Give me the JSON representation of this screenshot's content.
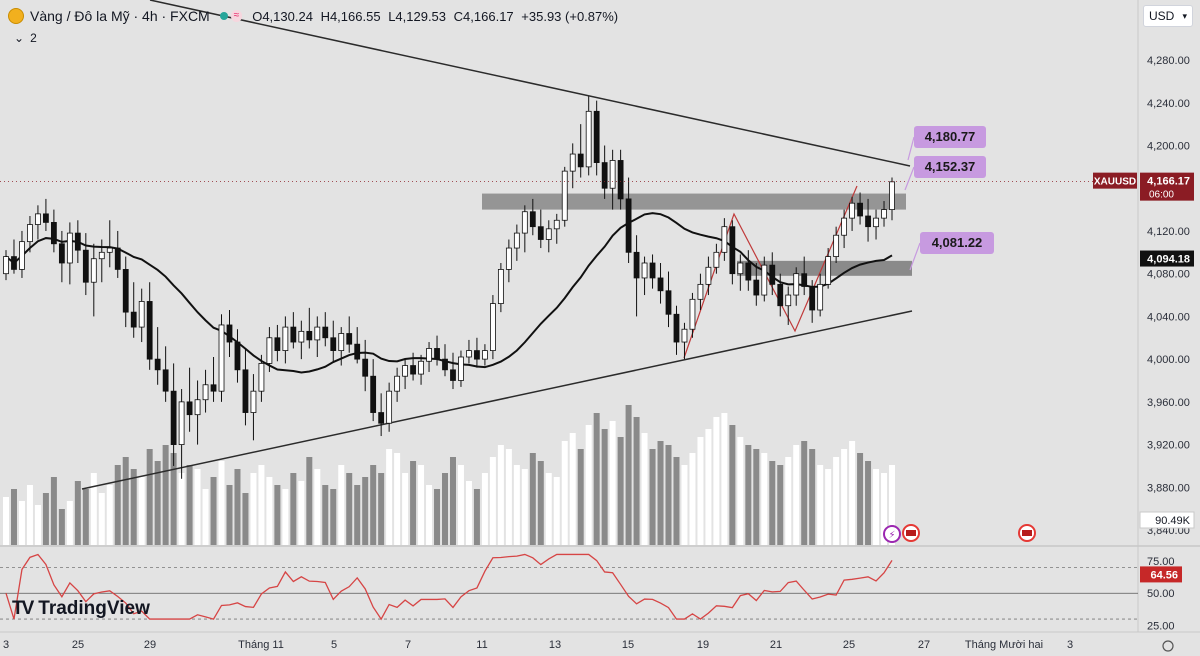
{
  "header": {
    "symbol_title": "Vàng / Đô la Mỹ · 4h · FXCM",
    "badge": "≈",
    "open": "O4,130.24",
    "high": "H4,166.55",
    "low": "L4,129.53",
    "close": "C4,166.17",
    "change": "+35.93 (+0.87%)",
    "collapse_count": "2",
    "currency": "USD"
  },
  "logo": {
    "text": "TradingView",
    "mark": "TV"
  },
  "colors": {
    "accent_purple": "#c79ae0",
    "price_label": "#8b1c24",
    "rsi_line": "#d64545"
  },
  "chart_data": {
    "type": "candlestick",
    "price_axis": {
      "ticks": [
        "4,280.00",
        "4,240.00",
        "4,200.00",
        "4,160.00",
        "4,120.00",
        "4,080.00",
        "4,040.00",
        "4,000.00",
        "3,960.00",
        "3,920.00",
        "3,880.00",
        "3,840.00"
      ],
      "range": [
        3826,
        4310
      ]
    },
    "x_axis_labels": [
      "3",
      "25",
      "29",
      "Tháng 11",
      "5",
      "7",
      "11",
      "13",
      "15",
      "19",
      "21",
      "25",
      "27",
      "Tháng Mười hai",
      "3"
    ],
    "volume_label": "90.49K",
    "symbol_tag": "XAUUSD",
    "last_price": "4,166.17",
    "countdown": "06:00",
    "ma_value": "4,094.18",
    "annotations": [
      "4,180.77",
      "4,152.37",
      "4,081.22"
    ],
    "rsi": {
      "ticks": [
        "75.00",
        "50.00",
        "25.00"
      ],
      "value": "64.56",
      "range": [
        20,
        85
      ],
      "upper": 70,
      "mid": 50,
      "lower": 30
    },
    "candles": [
      [
        4080,
        4102,
        4074,
        4096
      ],
      [
        4096,
        4112,
        4080,
        4084
      ],
      [
        4084,
        4120,
        4076,
        4110
      ],
      [
        4110,
        4134,
        4100,
        4126
      ],
      [
        4126,
        4144,
        4112,
        4136
      ],
      [
        4136,
        4150,
        4120,
        4128
      ],
      [
        4128,
        4140,
        4100,
        4108
      ],
      [
        4108,
        4120,
        4072,
        4090
      ],
      [
        4090,
        4128,
        4070,
        4118
      ],
      [
        4118,
        4130,
        4090,
        4102
      ],
      [
        4102,
        4118,
        4060,
        4072
      ],
      [
        4072,
        4108,
        4040,
        4094
      ],
      [
        4094,
        4112,
        4072,
        4100
      ],
      [
        4100,
        4130,
        4086,
        4104
      ],
      [
        4104,
        4120,
        4076,
        4084
      ],
      [
        4084,
        4096,
        4030,
        4044
      ],
      [
        4044,
        4072,
        4020,
        4030
      ],
      [
        4030,
        4066,
        4016,
        4054
      ],
      [
        4054,
        4072,
        3990,
        4000
      ],
      [
        4000,
        4030,
        3976,
        3990
      ],
      [
        3990,
        4012,
        3960,
        3970
      ],
      [
        3970,
        3996,
        3900,
        3920
      ],
      [
        3920,
        3972,
        3888,
        3960
      ],
      [
        3960,
        3992,
        3932,
        3948
      ],
      [
        3948,
        3980,
        3920,
        3962
      ],
      [
        3962,
        3990,
        3950,
        3976
      ],
      [
        3976,
        4002,
        3960,
        3970
      ],
      [
        3970,
        4042,
        3960,
        4032
      ],
      [
        4032,
        4046,
        4002,
        4016
      ],
      [
        4016,
        4028,
        3978,
        3990
      ],
      [
        3990,
        4010,
        3938,
        3950
      ],
      [
        3950,
        3986,
        3924,
        3970
      ],
      [
        3970,
        4004,
        3960,
        3996
      ],
      [
        3996,
        4030,
        3988,
        4020
      ],
      [
        4020,
        4032,
        3998,
        4008
      ],
      [
        4008,
        4040,
        3996,
        4030
      ],
      [
        4030,
        4044,
        4010,
        4016
      ],
      [
        4016,
        4036,
        4000,
        4026
      ],
      [
        4026,
        4048,
        4010,
        4018
      ],
      [
        4018,
        4040,
        4002,
        4030
      ],
      [
        4030,
        4044,
        4012,
        4020
      ],
      [
        4020,
        4036,
        3998,
        4008
      ],
      [
        4008,
        4030,
        3994,
        4024
      ],
      [
        4024,
        4040,
        4006,
        4014
      ],
      [
        4014,
        4030,
        3996,
        4000
      ],
      [
        4000,
        4018,
        3970,
        3984
      ],
      [
        3984,
        4000,
        3942,
        3950
      ],
      [
        3950,
        3968,
        3928,
        3940
      ],
      [
        3940,
        3978,
        3932,
        3970
      ],
      [
        3970,
        3992,
        3960,
        3984
      ],
      [
        3984,
        4000,
        3972,
        3994
      ],
      [
        3994,
        4006,
        3980,
        3986
      ],
      [
        3986,
        4004,
        3976,
        3998
      ],
      [
        3998,
        4016,
        3988,
        4010
      ],
      [
        4010,
        4022,
        3994,
        4000
      ],
      [
        4000,
        4014,
        3984,
        3990
      ],
      [
        3990,
        4006,
        3972,
        3980
      ],
      [
        3980,
        4008,
        3974,
        4002
      ],
      [
        4002,
        4018,
        3996,
        4008
      ],
      [
        4008,
        4020,
        3992,
        4000
      ],
      [
        4000,
        4014,
        3994,
        4008
      ],
      [
        4008,
        4060,
        4000,
        4052
      ],
      [
        4052,
        4090,
        4044,
        4084
      ],
      [
        4084,
        4112,
        4072,
        4104
      ],
      [
        4104,
        4126,
        4092,
        4118
      ],
      [
        4118,
        4144,
        4100,
        4138
      ],
      [
        4138,
        4150,
        4116,
        4124
      ],
      [
        4124,
        4140,
        4104,
        4112
      ],
      [
        4112,
        4130,
        4100,
        4122
      ],
      [
        4122,
        4136,
        4108,
        4130
      ],
      [
        4130,
        4180,
        4124,
        4176
      ],
      [
        4176,
        4202,
        4160,
        4192
      ],
      [
        4192,
        4220,
        4170,
        4180
      ],
      [
        4180,
        4246,
        4172,
        4232
      ],
      [
        4232,
        4242,
        4172,
        4184
      ],
      [
        4184,
        4200,
        4150,
        4160
      ],
      [
        4160,
        4196,
        4140,
        4186
      ],
      [
        4186,
        4196,
        4140,
        4150
      ],
      [
        4150,
        4170,
        4090,
        4100
      ],
      [
        4100,
        4116,
        4040,
        4076
      ],
      [
        4076,
        4096,
        4060,
        4090
      ],
      [
        4090,
        4098,
        4066,
        4076
      ],
      [
        4076,
        4090,
        4052,
        4064
      ],
      [
        4064,
        4082,
        4030,
        4042
      ],
      [
        4042,
        4050,
        4004,
        4016
      ],
      [
        4016,
        4034,
        4000,
        4028
      ],
      [
        4028,
        4062,
        4020,
        4056
      ],
      [
        4056,
        4080,
        4046,
        4070
      ],
      [
        4070,
        4096,
        4060,
        4086
      ],
      [
        4086,
        4108,
        4080,
        4100
      ],
      [
        4100,
        4132,
        4092,
        4124
      ],
      [
        4124,
        4130,
        4070,
        4080
      ],
      [
        4080,
        4098,
        4064,
        4090
      ],
      [
        4090,
        4102,
        4064,
        4074
      ],
      [
        4074,
        4090,
        4050,
        4060
      ],
      [
        4060,
        4096,
        4054,
        4088
      ],
      [
        4088,
        4100,
        4060,
        4070
      ],
      [
        4070,
        4080,
        4040,
        4050
      ],
      [
        4050,
        4068,
        4032,
        4060
      ],
      [
        4060,
        4086,
        4050,
        4080
      ],
      [
        4080,
        4096,
        4060,
        4068
      ],
      [
        4068,
        4074,
        4034,
        4046
      ],
      [
        4046,
        4080,
        4040,
        4070
      ],
      [
        4070,
        4104,
        4066,
        4096
      ],
      [
        4096,
        4124,
        4090,
        4116
      ],
      [
        4116,
        4140,
        4104,
        4132
      ],
      [
        4132,
        4152,
        4120,
        4146
      ],
      [
        4146,
        4156,
        4126,
        4134
      ],
      [
        4134,
        4150,
        4110,
        4124
      ],
      [
        4124,
        4140,
        4112,
        4132
      ],
      [
        4132,
        4148,
        4124,
        4140
      ],
      [
        4140,
        4170,
        4130,
        4166
      ]
    ],
    "volumes": [
      24,
      28,
      22,
      30,
      20,
      26,
      34,
      18,
      22,
      32,
      28,
      36,
      26,
      30,
      40,
      44,
      38,
      34,
      48,
      42,
      50,
      46,
      36,
      40,
      38,
      28,
      34,
      42,
      30,
      38,
      26,
      36,
      40,
      34,
      30,
      28,
      36,
      32,
      44,
      38,
      30,
      28,
      40,
      36,
      30,
      34,
      40,
      36,
      48,
      46,
      36,
      42,
      40,
      30,
      28,
      36,
      44,
      40,
      32,
      28,
      36,
      44,
      50,
      48,
      40,
      38,
      46,
      42,
      36,
      34,
      52,
      56,
      48,
      60,
      66,
      58,
      62,
      54,
      70,
      64,
      56,
      48,
      52,
      50,
      44,
      40,
      46,
      54,
      58,
      64,
      66,
      60,
      54,
      50,
      48,
      46,
      42,
      40,
      44,
      50,
      52,
      48,
      40,
      38,
      44,
      48,
      52,
      46,
      42,
      38,
      36,
      40
    ]
  }
}
